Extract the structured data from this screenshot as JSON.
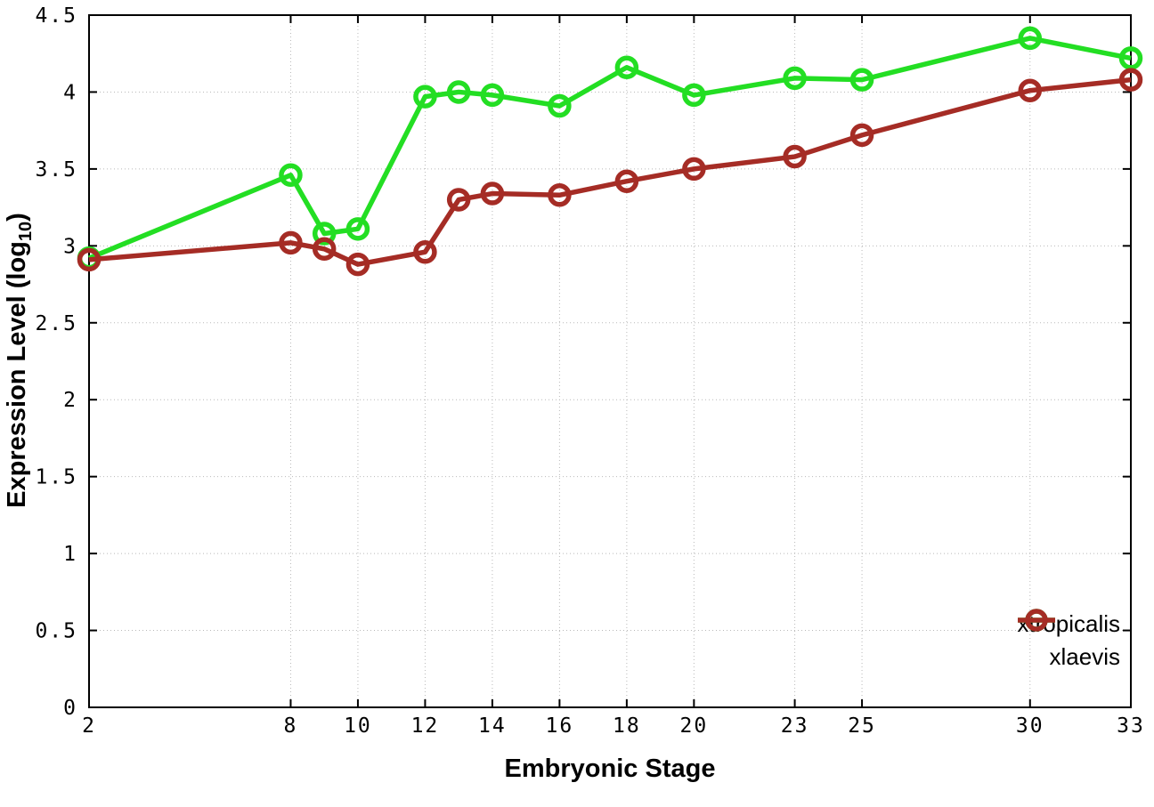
{
  "chart_data": {
    "type": "line",
    "title": "",
    "xlabel": "Embryonic Stage",
    "ylabel": "Expression Level (log10)",
    "ylabel_parts": {
      "prefix": "Expression Level (log",
      "sub": "10",
      "suffix": ")"
    },
    "xlim": [
      2,
      33
    ],
    "ylim": [
      0,
      4.5
    ],
    "grid": true,
    "legend_position": "bottom-right",
    "marker": "open-circle",
    "x_ticks": [
      2,
      8,
      10,
      12,
      14,
      16,
      18,
      20,
      23,
      25,
      30,
      33
    ],
    "x_tick_labels": [
      "2",
      "8",
      "10",
      "12",
      "14",
      "16",
      "18",
      "20",
      "23",
      "25",
      "30",
      "33"
    ],
    "y_ticks": [
      0,
      0.5,
      1,
      1.5,
      2,
      2.5,
      3,
      3.5,
      4,
      4.5
    ],
    "y_tick_labels": [
      "0",
      "0.5",
      "1",
      "1.5",
      "2",
      "2.5",
      "3",
      "3.5",
      "4",
      "4.5"
    ],
    "x": [
      2,
      8,
      9,
      10,
      12,
      13,
      14,
      16,
      18,
      20,
      23,
      25,
      30,
      33
    ],
    "series": [
      {
        "name": "xtropicalis",
        "color": "#23de23",
        "values": [
          2.92,
          3.46,
          3.08,
          3.11,
          3.97,
          4.0,
          3.98,
          3.91,
          4.16,
          3.98,
          4.09,
          4.08,
          4.35,
          4.22
        ]
      },
      {
        "name": "xlaevis",
        "color": "#a52c25",
        "values": [
          2.91,
          3.02,
          2.98,
          2.88,
          2.96,
          3.3,
          3.34,
          3.33,
          3.42,
          3.5,
          3.58,
          3.72,
          4.01,
          4.08
        ]
      }
    ],
    "colors": {
      "frame": "#000000",
      "grid": "#b9b9b9",
      "background": "#ffffff"
    }
  }
}
